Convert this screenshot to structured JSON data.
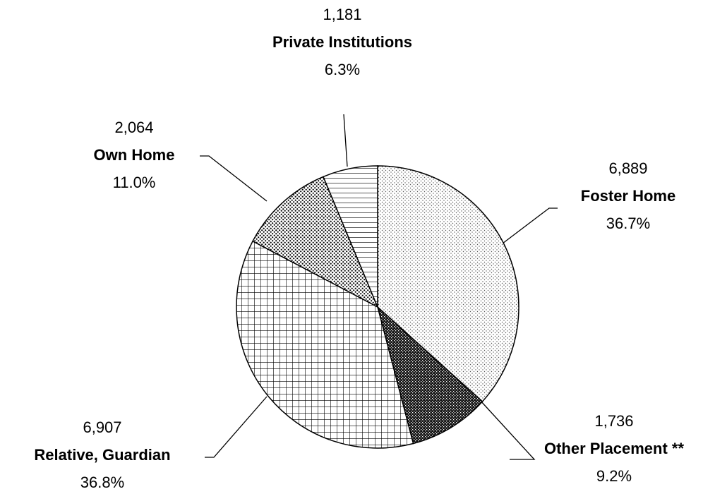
{
  "chart_data": {
    "type": "pie",
    "categories": [
      "Foster Home",
      "Other Placement **",
      "Relative, Guardian",
      "Own Home",
      "Private Institutions"
    ],
    "values": [
      6889,
      1736,
      6907,
      2064,
      1181
    ],
    "value_labels": [
      "6,889",
      "1,736",
      "6,907",
      "2,064",
      "1,181"
    ],
    "percent_labels": [
      "36.7%",
      "9.2%",
      "36.8%",
      "11.0%",
      "6.3%"
    ]
  }
}
